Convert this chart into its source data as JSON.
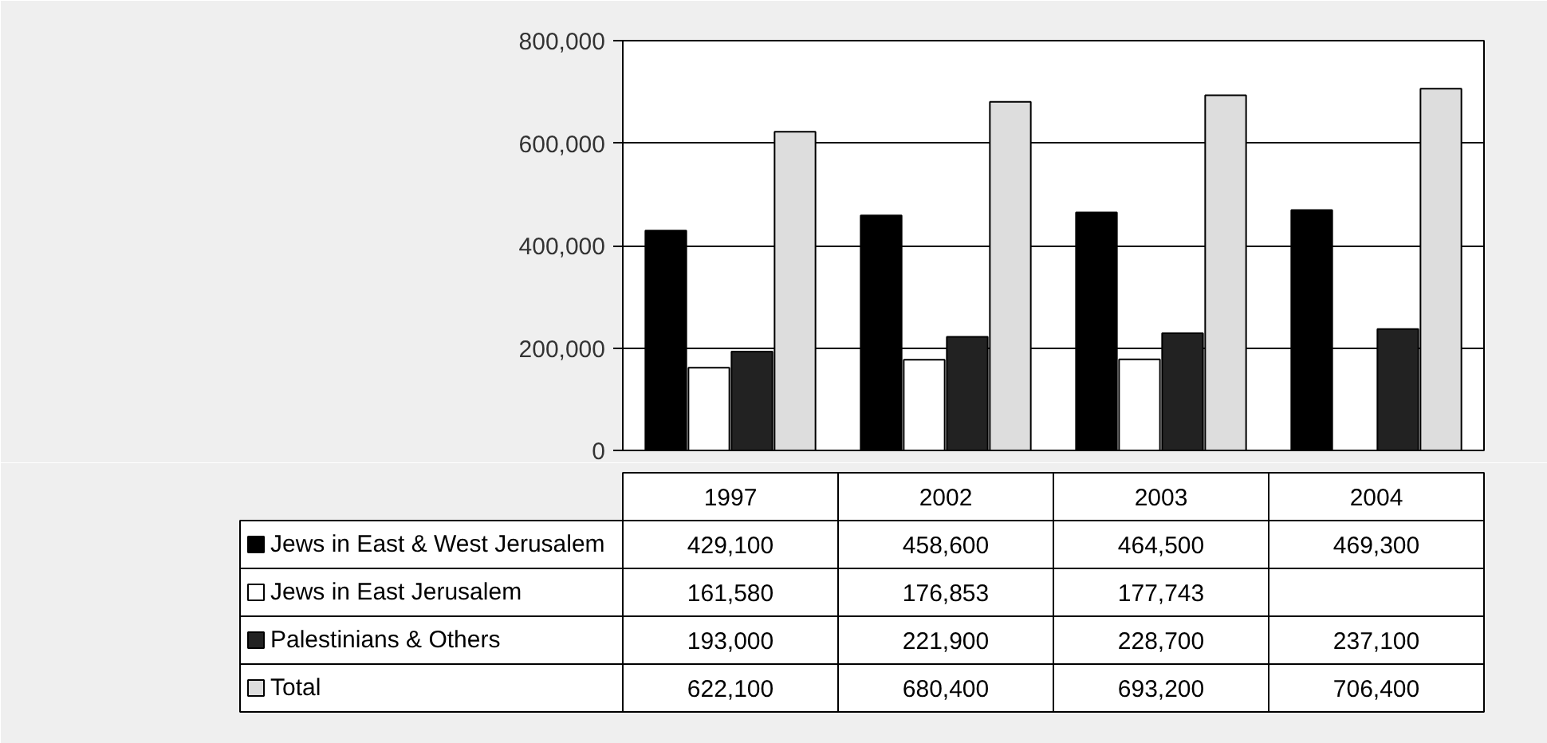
{
  "chart_data": {
    "type": "bar",
    "categories": [
      "1997",
      "2002",
      "2003",
      "2004"
    ],
    "series": [
      {
        "name": "Jews in East & West Jerusalem",
        "color": "#000000",
        "values": [
          429100,
          458600,
          464500,
          469300
        ],
        "value_labels": [
          "429,100",
          "458,600",
          "464,500",
          "469,300"
        ]
      },
      {
        "name": "Jews in East Jerusalem",
        "color": "#ffffff",
        "values": [
          161580,
          176853,
          177743,
          null
        ],
        "value_labels": [
          "161,580",
          "176,853",
          "177,743",
          null
        ]
      },
      {
        "name": "Palestinians & Others",
        "color": "#222222",
        "values": [
          193000,
          221900,
          228700,
          237100
        ],
        "value_labels": [
          "193,000",
          "221,900",
          "228,700",
          "237,100"
        ]
      },
      {
        "name": "Total",
        "color": "#dddddd",
        "values": [
          622100,
          680400,
          693200,
          706400
        ],
        "value_labels": [
          "622,100",
          "680,400",
          "693,200",
          "706,400"
        ]
      }
    ],
    "ylim": [
      0,
      800000
    ],
    "yticks": [
      {
        "value": 0,
        "label": "0"
      },
      {
        "value": 200000,
        "label": "200,000"
      },
      {
        "value": 400000,
        "label": "400,000"
      },
      {
        "value": 600000,
        "label": "600,000"
      },
      {
        "value": 800000,
        "label": "800,000"
      }
    ],
    "grid": "y",
    "legend": "bottom"
  }
}
